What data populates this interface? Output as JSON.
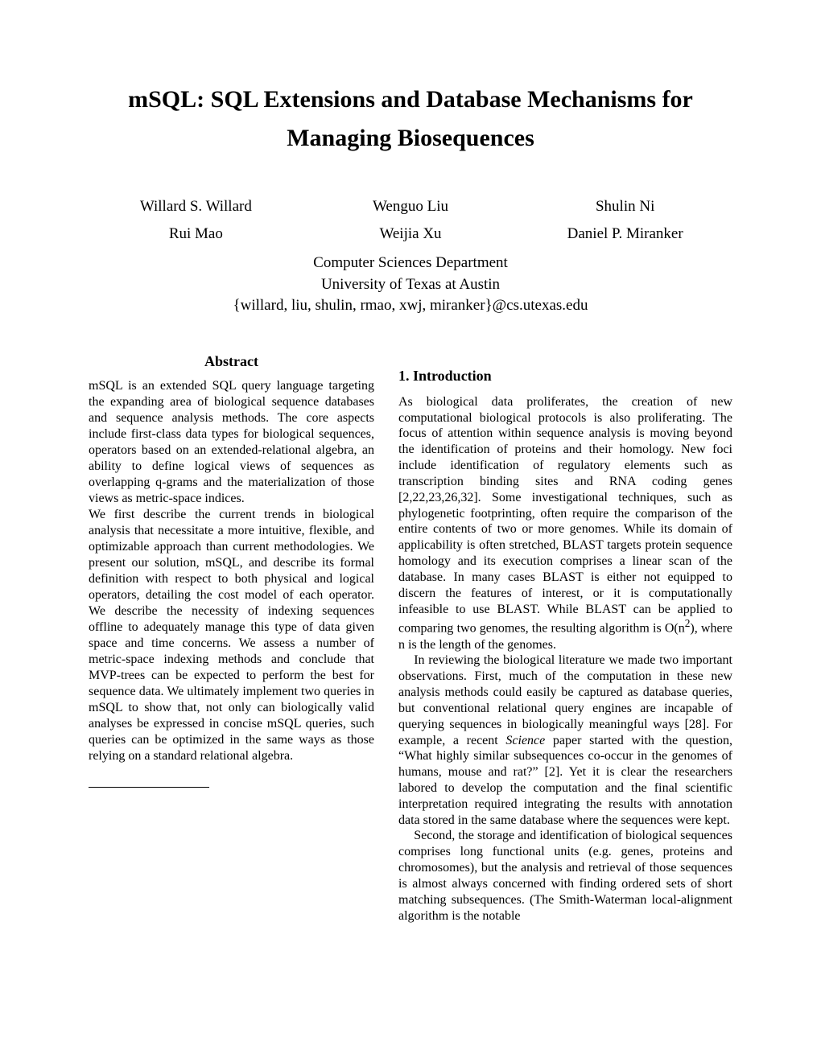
{
  "title": "mSQL: SQL Extensions and Database Mechanisms for Managing Biosequences",
  "authors_row1": [
    "Willard S. Willard",
    "Wenguo Liu",
    "Shulin Ni"
  ],
  "authors_row2": [
    "Rui Mao",
    "Weijia Xu",
    "Daniel P. Miranker"
  ],
  "affiliation": {
    "dept": "Computer Sciences Department",
    "univ": "University of Texas at Austin",
    "emails": "{willard, liu, shulin, rmao, xwj, miranker}@cs.utexas.edu"
  },
  "abstract": {
    "heading": "Abstract",
    "p1": "mSQL is an extended SQL query language targeting the expanding area of biological sequence databases and sequence analysis methods. The core aspects include first-class data types for biological sequences, operators based on an extended-relational algebra, an ability to define logical views of sequences as overlapping q-grams and the materialization of those views as metric-space indices.",
    "p2": "We first describe the current trends in biological analysis that necessitate a more intuitive, flexible, and optimizable approach than current methodologies. We present our solution, mSQL, and describe its formal definition with respect to both physical and logical operators, detailing the cost model of each operator. We describe the necessity of indexing sequences offline to adequately manage this type of data given space and time concerns. We assess a number of metric-space indexing methods and conclude that MVP-trees can be expected to perform the best for sequence data. We ultimately implement two queries in mSQL to show that, not only can biologically valid analyses be expressed in concise mSQL queries, such queries can be optimized in the same ways as those relying on a standard relational algebra."
  },
  "intro": {
    "heading": "1.  Introduction",
    "p1a": "As biological data proliferates, the creation of new computational biological protocols is also proliferating. The focus of attention within sequence analysis is moving beyond the identification of proteins and their homology. New foci include identification of regulatory elements such as transcription binding sites and RNA coding genes [2,22,23,26,32]. Some investigational techniques, such as phylogenetic footprinting, often require the comparison of the entire contents of two or more genomes. While its domain of applicability is often stretched, BLAST targets protein sequence homology and its execution comprises a linear scan of the database. In many cases BLAST is either not equipped to discern the features of interest, or it is computationally infeasible to use BLAST. While BLAST can be applied to comparing two genomes, the resulting algorithm is O(n",
    "p1b": "), where n is the length of the genomes.",
    "p2a": "In reviewing the biological literature we made two important observations. First, much of the computation in these new analysis methods could easily be captured as database queries, but conventional relational query engines are incapable of querying sequences in biologically meaningful ways [28]. For example, a recent ",
    "p2b": " paper started with the question, “What highly similar subsequences co-occur in the genomes of humans, mouse and rat?” [2]. Yet it is clear the researchers labored to develop the computation and the final scientific interpretation required integrating the results with annotation data stored in the same database where the sequences were kept.",
    "p2_italic": "Science",
    "p3": "Second, the storage and identification of biological sequences comprises long functional units (e.g. genes, proteins and chromosomes), but the analysis and retrieval of those sequences is almost always concerned with finding ordered sets of short matching subsequences. (The Smith-Waterman local-alignment algorithm is the notable"
  },
  "style": {
    "background_color": "#ffffff",
    "text_color": "#000000",
    "title_fontsize": 30,
    "author_fontsize": 19,
    "body_fontsize": 16,
    "heading_fontsize": 18,
    "font_family": "Times New Roman"
  }
}
